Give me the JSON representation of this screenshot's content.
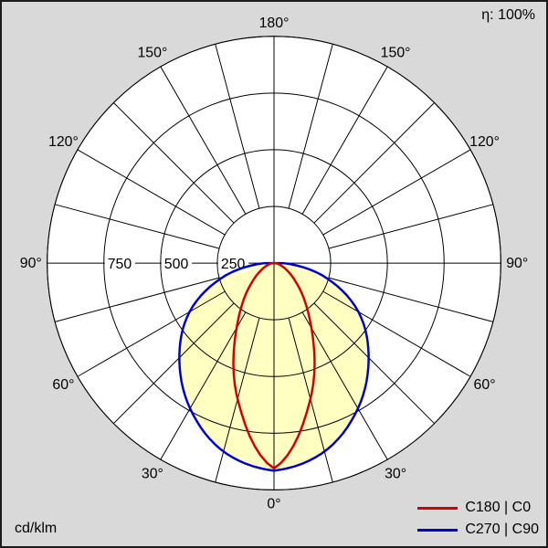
{
  "chart_data": {
    "type": "polar",
    "subtype": "luminous-intensity-distribution",
    "unit_label": "cd/klm",
    "efficiency_label": "η: 100%",
    "max_value": 1000,
    "rings": [
      250,
      500,
      750,
      1000
    ],
    "ring_labels": [
      {
        "value": 750,
        "label": "750"
      },
      {
        "value": 500,
        "label": "500"
      },
      {
        "value": 250,
        "label": "250"
      }
    ],
    "angle_step_deg": 15,
    "angle_labels": [
      {
        "angle": 0,
        "label": "0°"
      },
      {
        "angle": 30,
        "label": "30°"
      },
      {
        "angle": 60,
        "label": "60°"
      },
      {
        "angle": 90,
        "label": "90°"
      },
      {
        "angle": 120,
        "label": "120°"
      },
      {
        "angle": 150,
        "label": "150°"
      },
      {
        "angle": 180,
        "label": "180°"
      }
    ],
    "gamma_deg": [
      0,
      15,
      30,
      45,
      60,
      75,
      90
    ],
    "series": [
      {
        "name": "C180 | C0",
        "color": "#d40000",
        "values": [
          905,
          620,
          330,
          160,
          70,
          25,
          5
        ]
      },
      {
        "name": "C270 | C90",
        "color": "#0000cd",
        "values": [
          915,
          860,
          740,
          590,
          430,
          230,
          40
        ]
      }
    ],
    "fill_color": "#ffffc2",
    "colors": {
      "background": "#d9d9d9",
      "plot_fill": "#ffffff",
      "grid": "#000000"
    },
    "legend_position": "bottom-right",
    "grid": true
  }
}
